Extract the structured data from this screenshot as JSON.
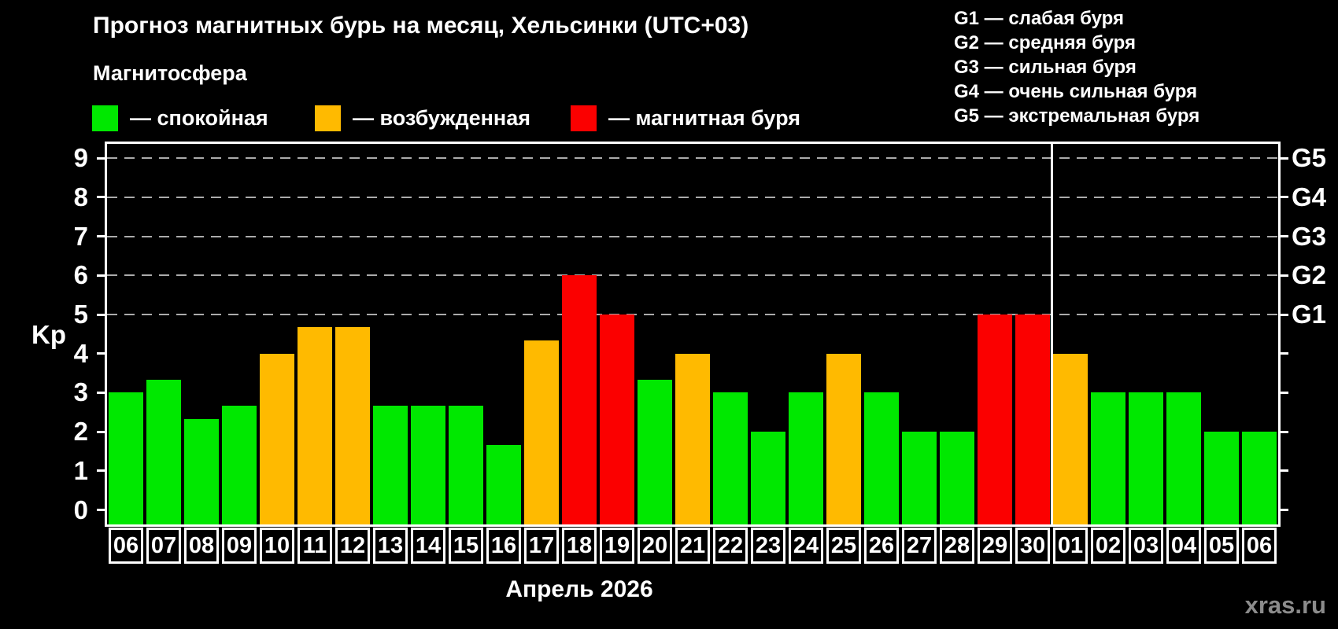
{
  "title": "Прогноз магнитных бурь на месяц, Хельсинки (UTC+03)",
  "magnetosphere": {
    "heading": "Магнитосфера",
    "items": [
      {
        "key": "quiet",
        "label": "— спокойная",
        "color": "#00e800"
      },
      {
        "key": "unsettled",
        "label": "— возбужденная",
        "color": "#ffba00"
      },
      {
        "key": "storm",
        "label": "— магнитная буря",
        "color": "#fb0000"
      }
    ]
  },
  "g_scale_legend": {
    "lines": [
      "G1 — слабая буря",
      "G2 — средняя буря",
      "G3 — сильная буря",
      "G4 — очень сильная буря",
      "G5 — экстремальная буря"
    ]
  },
  "chart_data": {
    "type": "bar",
    "title": "Прогноз магнитных бурь на месяц, Хельсинки (UTC+03)",
    "ylabel": "Kp",
    "xlabel": "Апрель 2026",
    "ylim": [
      0,
      9
    ],
    "grid": "dashed horizontal gridlines at Kp 5,6,7,8,9 only",
    "left_axis_ticks": [
      0,
      1,
      2,
      3,
      4,
      5,
      6,
      7,
      8,
      9
    ],
    "right_axis_labels": [
      {
        "label": "G1",
        "kp": 5
      },
      {
        "label": "G2",
        "kp": 6
      },
      {
        "label": "G3",
        "kp": 7
      },
      {
        "label": "G4",
        "kp": 8
      },
      {
        "label": "G5",
        "kp": 9
      }
    ],
    "categories": [
      "06",
      "07",
      "08",
      "09",
      "10",
      "11",
      "12",
      "13",
      "14",
      "15",
      "16",
      "17",
      "18",
      "19",
      "20",
      "21",
      "22",
      "23",
      "24",
      "25",
      "26",
      "27",
      "28",
      "29",
      "30",
      "01",
      "02",
      "03",
      "04",
      "05",
      "06"
    ],
    "values": [
      3,
      3.33,
      2.33,
      2.67,
      4,
      4.67,
      4.67,
      2.67,
      2.67,
      2.67,
      1.67,
      4.33,
      6,
      5,
      3.33,
      4,
      3,
      2,
      3,
      4,
      3,
      2,
      2,
      5,
      5,
      4,
      3,
      3,
      3,
      2,
      2
    ],
    "statuses": [
      "quiet",
      "quiet",
      "quiet",
      "quiet",
      "unsettled",
      "unsettled",
      "unsettled",
      "quiet",
      "quiet",
      "quiet",
      "quiet",
      "unsettled",
      "storm",
      "storm",
      "quiet",
      "unsettled",
      "quiet",
      "quiet",
      "quiet",
      "unsettled",
      "quiet",
      "quiet",
      "quiet",
      "storm",
      "storm",
      "unsettled",
      "quiet",
      "quiet",
      "quiet",
      "quiet",
      "quiet"
    ],
    "month_separator_after_index": 24
  },
  "watermark": "xras.ru"
}
